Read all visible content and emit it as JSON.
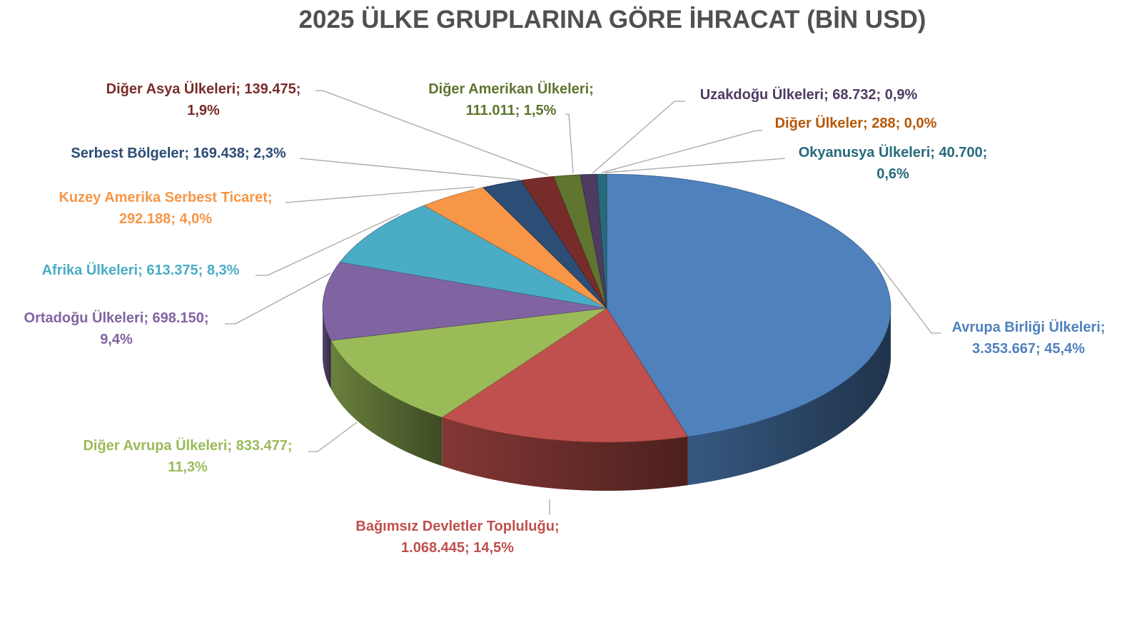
{
  "chart_data": {
    "type": "pie",
    "style": "3d",
    "title": "2025 ÜLKE GRUPLARINA GÖRE İHRACAT (BİN USD)",
    "legend": "none",
    "slices": [
      {
        "label": "Avrupa Birliği Ülkeleri",
        "value": 3353667,
        "value_text": "3.353.667",
        "percent": "45,4%",
        "color": "#4f81bd",
        "text_color": "#4f81bd"
      },
      {
        "label": "Bağımsız Devletler Topluluğu",
        "value": 1068445,
        "value_text": "1.068.445",
        "percent": "14,5%",
        "color": "#c0504d",
        "text_color": "#c0504d"
      },
      {
        "label": "Diğer Avrupa Ülkeleri",
        "value": 833477,
        "value_text": "833.477",
        "percent": "11,3%",
        "color": "#9bbb59",
        "text_color": "#9bbb59"
      },
      {
        "label": "Ortadoğu Ülkeleri",
        "value": 698150,
        "value_text": "698.150",
        "percent": "9,4%",
        "color": "#8064a2",
        "text_color": "#8064a2"
      },
      {
        "label": "Afrika Ülkeleri",
        "value": 613375,
        "value_text": "613.375",
        "percent": "8,3%",
        "color": "#4bacc6",
        "text_color": "#4bacc6"
      },
      {
        "label": "Kuzey Amerika Serbest Ticaret",
        "value": 292188,
        "value_text": "292.188",
        "percent": "4,0%",
        "color": "#f79646",
        "text_color": "#f79646"
      },
      {
        "label": "Serbest Bölgeler",
        "value": 169438,
        "value_text": "169.438",
        "percent": "2,3%",
        "color": "#2c4d75",
        "text_color": "#2c4d75"
      },
      {
        "label": "Diğer Asya Ülkeleri",
        "value": 139475,
        "value_text": "139.475",
        "percent": "1,9%",
        "color": "#772c2a",
        "text_color": "#772c2a"
      },
      {
        "label": "Diğer Amerikan Ülkeleri",
        "value": 111011,
        "value_text": "111.011",
        "percent": "1,5%",
        "color": "#5f7530",
        "text_color": "#5f7530"
      },
      {
        "label": "Uzakdoğu Ülkeleri",
        "value": 68732,
        "value_text": "68.732",
        "percent": "0,9%",
        "color": "#4d3b62",
        "text_color": "#4d3b62"
      },
      {
        "label": "Diğer Ülkeler",
        "value": 288,
        "value_text": "288",
        "percent": "0,0%",
        "color": "#b65708",
        "text_color": "#b65708"
      },
      {
        "label": "Okyanusya Ülkeleri",
        "value": 40700,
        "value_text": "40.700",
        "percent": "0,6%",
        "color": "#276a7c",
        "text_color": "#276a7c"
      }
    ]
  },
  "labels": [
    {
      "line1": "Avrupa Birliği Ülkeleri;",
      "line2": "3.353.667; 45,4%"
    },
    {
      "line1": "Bağımsız Devletler Topluluğu;",
      "line2": "1.068.445; 14,5%"
    },
    {
      "line1": "Diğer Avrupa Ülkeleri; 833.477;",
      "line2": "11,3%"
    },
    {
      "line1": "Ortadoğu Ülkeleri; 698.150;",
      "line2": "9,4%"
    },
    {
      "line1": "Afrika Ülkeleri; 613.375; 8,3%",
      "line2": ""
    },
    {
      "line1": "Kuzey Amerika Serbest Ticaret;",
      "line2": "292.188; 4,0%"
    },
    {
      "line1": "Serbest Bölgeler; 169.438; 2,3%",
      "line2": ""
    },
    {
      "line1": "Diğer Asya Ülkeleri; 139.475;",
      "line2": "1,9%"
    },
    {
      "line1": "Diğer Amerikan Ülkeleri;",
      "line2": "111.011; 1,5%"
    },
    {
      "line1": "Uzakdoğu Ülkeleri; 68.732; 0,9%",
      "line2": ""
    },
    {
      "line1": "Diğer Ülkeler; 288; 0,0%",
      "line2": ""
    },
    {
      "line1": "Okyanusya Ülkeleri; 40.700;",
      "line2": "0,6%"
    }
  ]
}
